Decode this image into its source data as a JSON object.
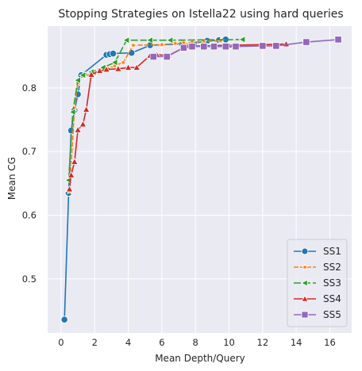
{
  "chart_data": {
    "type": "line",
    "title": "Stopping Strategies on Istella22 using hard queries",
    "xlabel": "Mean Depth/Query",
    "ylabel": "Mean CG",
    "xlim": [
      -0.8,
      17.3
    ],
    "ylim": [
      0.415,
      0.897
    ],
    "xticks": [
      0,
      2,
      4,
      6,
      8,
      10,
      12,
      14,
      16
    ],
    "yticks": [
      0.5,
      0.6,
      0.7,
      0.8
    ],
    "ytick_labels": [
      "0.5",
      "0.6",
      "0.7",
      "0.8"
    ],
    "grid": true,
    "background": "#eaeaf2",
    "legend_position": "lower-right",
    "series": [
      {
        "name": "SS1",
        "color": "#1f77b4",
        "marker": "circle",
        "dash": "solid",
        "x": [
          0.2,
          0.45,
          0.6,
          0.8,
          1.0,
          1.2,
          2.7,
          2.9,
          3.1,
          4.2,
          5.3,
          7.2,
          7.9,
          8.7,
          9.4,
          9.8
        ],
        "y": [
          0.436,
          0.635,
          0.733,
          0.765,
          0.79,
          0.82,
          0.852,
          0.853,
          0.854,
          0.855,
          0.867,
          0.869,
          0.87,
          0.874,
          0.875,
          0.876
        ]
      },
      {
        "name": "SS2",
        "color": "#ff7f0e",
        "marker": "star",
        "dash": "6,2",
        "x": [
          0.5,
          0.8,
          1.0,
          1.3,
          2.0,
          2.8,
          3.2,
          3.7,
          4.3,
          6.0,
          6.8,
          7.3,
          7.8,
          8.5,
          9.5
        ],
        "y": [
          0.638,
          0.768,
          0.808,
          0.818,
          0.823,
          0.83,
          0.835,
          0.84,
          0.867,
          0.868,
          0.87,
          0.871,
          0.872,
          0.873,
          0.874
        ]
      },
      {
        "name": "SS3",
        "color": "#2ca02c",
        "marker": "tri-left",
        "dash": "9,3",
        "x": [
          0.45,
          0.7,
          1.0,
          1.3,
          1.8,
          2.5,
          3.2,
          3.9,
          5.3,
          6.5,
          10.8
        ],
        "y": [
          0.655,
          0.762,
          0.812,
          0.82,
          0.825,
          0.832,
          0.84,
          0.875,
          0.875,
          0.875,
          0.876
        ]
      },
      {
        "name": "SS4",
        "color": "#d62728",
        "marker": "triangle",
        "dash": "solid",
        "x": [
          0.5,
          0.6,
          0.8,
          1.0,
          1.3,
          1.5,
          1.8,
          2.3,
          2.7,
          3.4,
          4.0,
          4.5,
          5.3,
          5.7,
          6.4,
          7.5,
          8.5,
          10.0,
          12.0,
          13.4
        ],
        "y": [
          0.641,
          0.663,
          0.684,
          0.734,
          0.743,
          0.766,
          0.821,
          0.827,
          0.829,
          0.83,
          0.832,
          0.832,
          0.851,
          0.852,
          0.851,
          0.866,
          0.866,
          0.867,
          0.868,
          0.869
        ]
      },
      {
        "name": "SS5",
        "color": "#9467bd",
        "marker": "square",
        "dash": "solid",
        "x": [
          5.5,
          6.3,
          7.3,
          7.8,
          8.5,
          9.1,
          9.8,
          10.4,
          12.0,
          12.8,
          14.6,
          16.5
        ],
        "y": [
          0.849,
          0.849,
          0.863,
          0.865,
          0.865,
          0.865,
          0.865,
          0.865,
          0.866,
          0.866,
          0.872,
          0.876
        ]
      }
    ]
  }
}
